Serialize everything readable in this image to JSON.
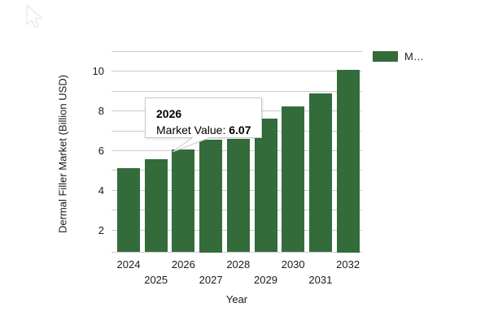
{
  "chart_data": {
    "type": "bar",
    "title": "",
    "xlabel": "Year",
    "ylabel": "Dermal Filler Market (Billion USD)",
    "categories": [
      "2024",
      "2025",
      "2026",
      "2027",
      "2028",
      "2029",
      "2030",
      "2031",
      "2032"
    ],
    "series": [
      {
        "name": "Market Value",
        "values": [
          5.1,
          5.55,
          6.07,
          6.55,
          6.6,
          7.6,
          8.25,
          8.9,
          10.1
        ]
      }
    ],
    "ylim": [
      0.87,
      11.3
    ],
    "y_ticks_labeled": [
      2,
      4,
      6,
      8,
      10
    ],
    "y_gridlines": [
      2,
      3,
      4,
      5,
      6,
      7,
      8,
      9,
      10,
      11
    ],
    "grid": true,
    "legend_position": "right",
    "bar_color": "#346b3b",
    "gridline_color": "#cccccc",
    "text_color": "#1a1a1a"
  },
  "legend": {
    "display_label": "M…"
  },
  "tooltip": {
    "title": "2026",
    "label": "Market Value: ",
    "value": "6.07"
  }
}
